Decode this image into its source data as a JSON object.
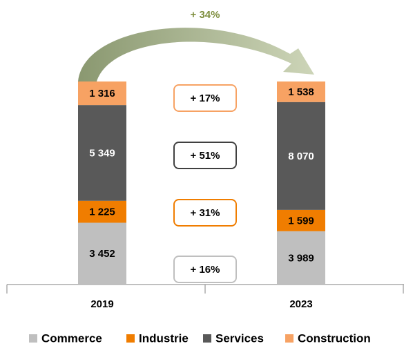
{
  "chart_data": {
    "type": "bar",
    "stack": "percent",
    "categories": [
      "2019",
      "2023"
    ],
    "series": [
      {
        "name": "Commerce",
        "color": "#bfbfbf",
        "values": [
          3452,
          3989
        ],
        "value_labels": [
          "3 452",
          "3 989"
        ]
      },
      {
        "name": "Industrie",
        "color": "#f07d00",
        "values": [
          1225,
          1599
        ],
        "value_labels": [
          "1 225",
          "1 599"
        ]
      },
      {
        "name": "Services",
        "color": "#595959",
        "values": [
          5349,
          8070
        ],
        "value_labels": [
          "5 349",
          "8 070"
        ]
      },
      {
        "name": "Construction",
        "color": "#f7a263",
        "values": [
          1316,
          1538
        ],
        "value_labels": [
          "1 316",
          "1 538"
        ]
      }
    ],
    "annotations": [
      {
        "text": "+ 34%",
        "color": "#7f8f3f"
      },
      {
        "text": "+ 17%",
        "color": "#f7a263"
      },
      {
        "text": "+ 51%",
        "color": "#404040"
      },
      {
        "text": "+ 31%",
        "color": "#f07d00"
      },
      {
        "text": "+ 16%",
        "color": "#bfbfbf"
      }
    ],
    "legend": "bottom"
  }
}
